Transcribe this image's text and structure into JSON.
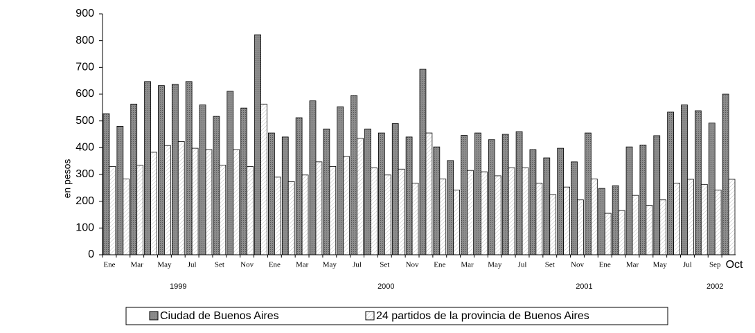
{
  "chart_data": {
    "type": "bar",
    "y_label": "en pesos",
    "categories": [
      "Ene",
      null,
      "Mar",
      null,
      "May",
      null,
      "Jul",
      null,
      "Set",
      null,
      "Nov",
      null,
      "Ene",
      null,
      "Mar",
      null,
      "May",
      null,
      "Jul",
      null,
      "Set",
      null,
      "Nov",
      null,
      "Ene",
      null,
      "Mar",
      null,
      "May",
      null,
      "Jul",
      null,
      "Set",
      null,
      "Nov",
      null,
      "Ene",
      null,
      "Mar",
      null,
      "May",
      null,
      "Jul",
      null,
      "Sep",
      "Oct"
    ],
    "year_labels": [
      "1999",
      "2000",
      "2001",
      "2002"
    ],
    "series": [
      {
        "name": "Ciudad de Buenos Aires",
        "color": "#8c8c8c",
        "values": [
          527,
          480,
          563,
          647,
          632,
          637,
          647,
          560,
          517,
          611,
          548,
          822,
          455,
          440,
          512,
          575,
          470,
          553,
          595,
          470,
          455,
          490,
          440,
          693,
          403,
          352,
          446,
          455,
          430,
          450,
          460,
          393,
          362,
          398,
          347,
          455,
          248,
          258,
          403,
          410,
          445,
          533,
          560,
          538,
          492,
          600
        ]
      },
      {
        "name": "24 partidos de la provincia de Buenos Aires",
        "color": "#ffffff",
        "values": [
          330,
          283,
          335,
          383,
          408,
          423,
          398,
          393,
          335,
          393,
          330,
          563,
          290,
          273,
          298,
          347,
          330,
          367,
          435,
          325,
          298,
          320,
          268,
          455,
          283,
          242,
          315,
          310,
          295,
          325,
          325,
          268,
          225,
          253,
          205,
          283,
          155,
          165,
          222,
          185,
          205,
          268,
          282,
          263,
          242,
          282
        ]
      }
    ],
    "ylim": [
      0,
      900
    ],
    "yticks": [
      0,
      100,
      200,
      300,
      400,
      500,
      600,
      700,
      800,
      900
    ],
    "grid": false
  }
}
